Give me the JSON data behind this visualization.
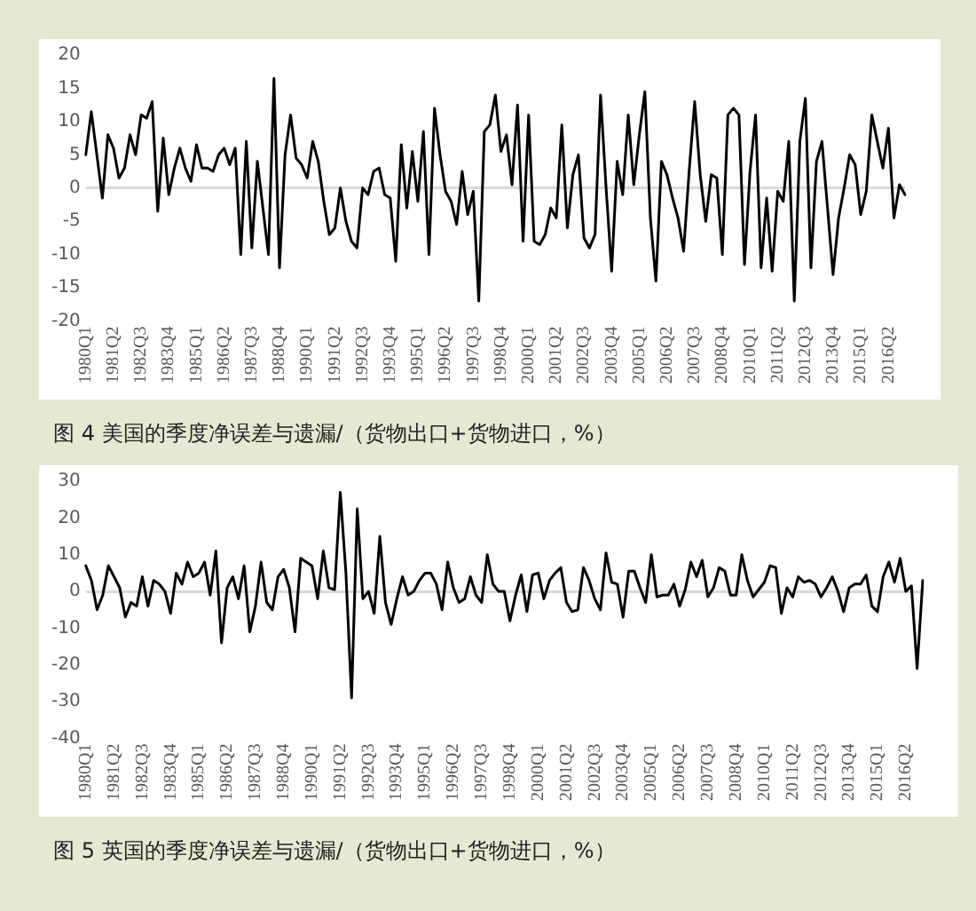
{
  "chart_data": [
    {
      "type": "line",
      "title": "图 4 美国的季度净误差与遗漏/（货物出口+货物进口，%）",
      "categories": [
        "1980Q1",
        null,
        null,
        null,
        null,
        "1981Q2",
        null,
        null,
        null,
        null,
        "1982Q3",
        null,
        null,
        null,
        null,
        "1983Q4",
        null,
        null,
        null,
        null,
        "1985Q1",
        null,
        null,
        null,
        null,
        "1986Q2",
        null,
        null,
        null,
        null,
        "1987Q3",
        null,
        null,
        null,
        null,
        "1988Q4",
        null,
        null,
        null,
        null,
        "1990Q1",
        null,
        null,
        null,
        null,
        "1991Q2",
        null,
        null,
        null,
        null,
        "1992Q3",
        null,
        null,
        null,
        null,
        "1993Q4",
        null,
        null,
        null,
        null,
        "1995Q1",
        null,
        null,
        null,
        null,
        "1996Q2",
        null,
        null,
        null,
        null,
        "1997Q3",
        null,
        null,
        null,
        null,
        "1998Q4",
        null,
        null,
        null,
        null,
        "2000Q1",
        null,
        null,
        null,
        null,
        "2001Q2",
        null,
        null,
        null,
        null,
        "2002Q3",
        null,
        null,
        null,
        null,
        "2003Q4",
        null,
        null,
        null,
        null,
        "2005Q1",
        null,
        null,
        null,
        null,
        "2006Q2",
        null,
        null,
        null,
        null,
        "2007Q3",
        null,
        null,
        null,
        null,
        "2008Q4",
        null,
        null,
        null,
        null,
        "2010Q1",
        null,
        null,
        null,
        null,
        "2011Q2",
        null,
        null,
        null,
        null,
        "2012Q3",
        null,
        null,
        null,
        null,
        "2013Q4",
        null,
        null,
        null,
        null,
        "2015Q1",
        null,
        null,
        null,
        null,
        "2016Q2",
        null,
        null,
        null
      ],
      "series": [
        {
          "color": "#000000",
          "values": [
            5,
            11.5,
            5,
            -1.5,
            8,
            6,
            1.5,
            3,
            8,
            5,
            11,
            10.5,
            13,
            -3.5,
            7.5,
            -1,
            3,
            6,
            3,
            1,
            6.5,
            3,
            3,
            2.5,
            5,
            6,
            3.5,
            6,
            -10,
            7,
            -9,
            4,
            -3,
            -10,
            16.5,
            -12,
            5,
            11,
            4.5,
            3.5,
            1.5,
            7,
            4,
            -2,
            -7,
            -6,
            0,
            -5,
            -8,
            -9,
            0,
            -1,
            2.5,
            3,
            -1,
            -1.5,
            -11,
            6.5,
            -3,
            5.5,
            -2,
            8.5,
            -10,
            12,
            5,
            -0.5,
            -2,
            -5.5,
            2.5,
            -4,
            -0.5,
            -17,
            8.5,
            9.5,
            14,
            5.5,
            8,
            0.5,
            12.5,
            -8,
            11,
            -8,
            -8.5,
            -7,
            -3,
            -4.5,
            9.5,
            -6,
            2,
            5,
            -7.5,
            -9,
            -7,
            14,
            0,
            -12.5,
            4,
            -1,
            11,
            0.5,
            8,
            14.5,
            -4.5,
            -14,
            4,
            2,
            -1.5,
            -4.5,
            -9.5,
            2.5,
            13,
            2,
            -5,
            2,
            1.5,
            -10,
            11,
            12,
            11,
            -11.5,
            2.5,
            11,
            -12,
            -1.5,
            -12.5,
            -0.5,
            -2,
            7,
            -17,
            7,
            13.5,
            -12,
            4,
            7,
            -3,
            -13,
            -4.5,
            0,
            5,
            3.5,
            -4,
            -0.5,
            11,
            7,
            3,
            9,
            -4.5,
            0.5,
            -1
          ]
        }
      ],
      "ylim": [
        -20,
        20
      ],
      "yticks": [
        -20,
        -15,
        -10,
        -5,
        0,
        5,
        10,
        15,
        20
      ]
    },
    {
      "type": "line",
      "title": "图 5 英国的季度净误差与遗漏/（货物出口+货物进口，%）",
      "categories": [
        "1980Q1",
        null,
        null,
        null,
        null,
        "1981Q2",
        null,
        null,
        null,
        null,
        "1982Q3",
        null,
        null,
        null,
        null,
        "1983Q4",
        null,
        null,
        null,
        null,
        "1985Q1",
        null,
        null,
        null,
        null,
        "1986Q2",
        null,
        null,
        null,
        null,
        "1987Q3",
        null,
        null,
        null,
        null,
        "1988Q4",
        null,
        null,
        null,
        null,
        "1990Q1",
        null,
        null,
        null,
        null,
        "1991Q2",
        null,
        null,
        null,
        null,
        "1992Q3",
        null,
        null,
        null,
        null,
        "1993Q4",
        null,
        null,
        null,
        null,
        "1995Q1",
        null,
        null,
        null,
        null,
        "1996Q2",
        null,
        null,
        null,
        null,
        "1997Q3",
        null,
        null,
        null,
        null,
        "1998Q4",
        null,
        null,
        null,
        null,
        "2000Q1",
        null,
        null,
        null,
        null,
        "2001Q2",
        null,
        null,
        null,
        null,
        "2002Q3",
        null,
        null,
        null,
        null,
        "2003Q4",
        null,
        null,
        null,
        null,
        "2005Q1",
        null,
        null,
        null,
        null,
        "2006Q2",
        null,
        null,
        null,
        null,
        "2007Q3",
        null,
        null,
        null,
        null,
        "2008Q4",
        null,
        null,
        null,
        null,
        "2010Q1",
        null,
        null,
        null,
        null,
        "2011Q2",
        null,
        null,
        null,
        null,
        "2012Q3",
        null,
        null,
        null,
        null,
        "2013Q4",
        null,
        null,
        null,
        null,
        "2015Q1",
        null,
        null,
        null,
        null,
        "2016Q2",
        null,
        null,
        null
      ],
      "series": [
        {
          "color": "#000000",
          "values": [
            7,
            3,
            -5,
            -1,
            7,
            4,
            1,
            -7,
            -3,
            -4,
            4,
            -4,
            3,
            2,
            0,
            -6,
            5,
            2,
            8,
            4,
            5,
            8,
            -1,
            11,
            -14,
            1,
            4,
            -2,
            7,
            -11,
            -4,
            8,
            -3,
            -5,
            4,
            6,
            1,
            -11,
            9,
            8,
            7,
            -2,
            11,
            1,
            0.5,
            27,
            5,
            -29,
            22.5,
            -2,
            0,
            -6,
            15,
            -3,
            -9,
            -2,
            4,
            -1,
            0,
            3,
            5,
            5,
            2,
            -5,
            8,
            1,
            -3,
            -2,
            4,
            -1,
            -3,
            10,
            2,
            0,
            0,
            -8,
            -1,
            4.5,
            -5.5,
            4.5,
            5,
            -2,
            3,
            5,
            6.5,
            -3,
            -5.5,
            -5,
            6.5,
            3,
            -2,
            -5,
            10.5,
            2.5,
            2,
            -7,
            5.5,
            5.5,
            1,
            -3,
            10,
            -1.5,
            -1,
            -1,
            2,
            -4,
            0.5,
            8,
            4,
            8.5,
            -1.5,
            1,
            6.5,
            5.5,
            -1,
            -1,
            10,
            3,
            -1.5,
            0.5,
            2.5,
            7,
            6.5,
            -6,
            1,
            -1.5,
            4,
            2.5,
            3,
            2,
            -1.5,
            1,
            4,
            0,
            -5.5,
            1,
            2,
            2,
            4.5,
            -4,
            -5.5,
            4,
            8,
            2.5,
            9,
            0,
            1.5,
            -21,
            3
          ]
        }
      ],
      "ylim": [
        -40,
        30
      ],
      "yticks": [
        -40,
        -30,
        -20,
        -10,
        0,
        10,
        20,
        30
      ]
    }
  ]
}
